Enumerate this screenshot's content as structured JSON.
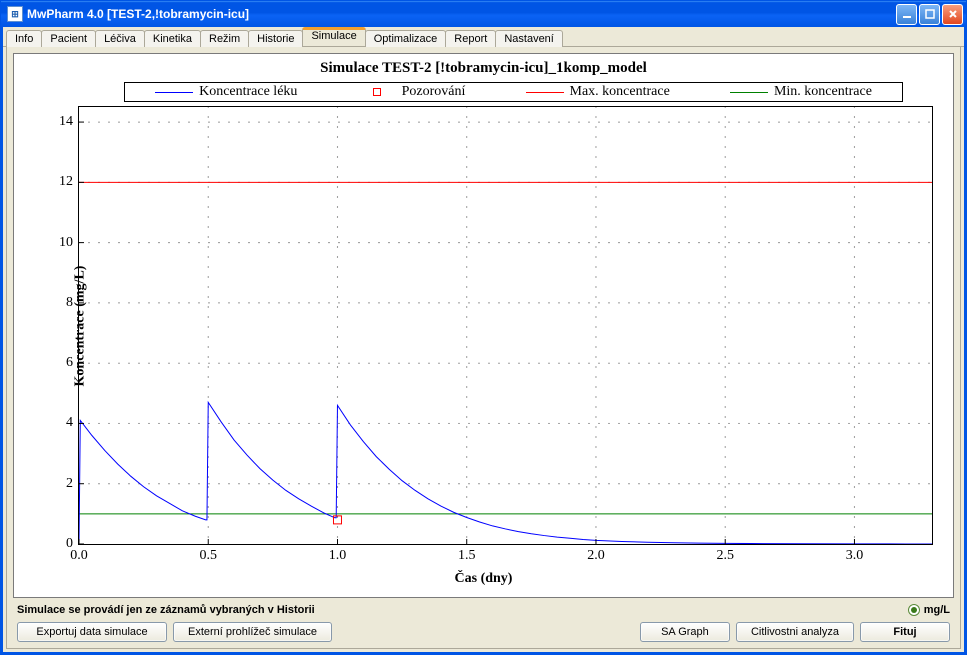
{
  "window": {
    "title": "MwPharm 4.0  [TEST-2,!tobramycin-icu]",
    "app_icon_glyph": "⊞"
  },
  "tabs": [
    {
      "id": "info",
      "label": "Info"
    },
    {
      "id": "pacient",
      "label": "Pacient"
    },
    {
      "id": "leciva",
      "label": "Léčiva"
    },
    {
      "id": "kinetika",
      "label": "Kinetika"
    },
    {
      "id": "rezim",
      "label": "Režim"
    },
    {
      "id": "historie",
      "label": "Historie"
    },
    {
      "id": "simulace",
      "label": "Simulace",
      "active": true
    },
    {
      "id": "optimalizace",
      "label": "Optimalizace"
    },
    {
      "id": "report",
      "label": "Report"
    },
    {
      "id": "nastaveni",
      "label": "Nastavení"
    }
  ],
  "chart": {
    "type": "line",
    "title": "Simulace  TEST-2 [!tobramycin-icu]_1komp_model",
    "title_fontsize": 15,
    "xlabel": "Čas (dny)",
    "ylabel": "Koncentrace (mg/L)",
    "label_fontsize": 14,
    "tick_fontsize": 14,
    "xlim": [
      0,
      3.3
    ],
    "ylim": [
      0,
      14.5
    ],
    "xticks": [
      0.0,
      0.5,
      1.0,
      1.5,
      2.0,
      2.5,
      3.0
    ],
    "yticks": [
      0,
      2,
      4,
      6,
      8,
      10,
      12,
      14
    ],
    "grid_style": "dotted",
    "grid_color": "#555555",
    "background_color": "#ffffff",
    "legend": {
      "items": [
        {
          "label": "Koncentrace léku",
          "type": "line",
          "color": "#0000ff"
        },
        {
          "label": "Pozorování",
          "type": "marker",
          "color": "#ff0000",
          "marker": "square"
        },
        {
          "label": "Max. koncentrace",
          "type": "line",
          "color": "#ff0000"
        },
        {
          "label": "Min. koncentrace",
          "type": "line",
          "color": "#008000"
        }
      ]
    },
    "hlines": [
      {
        "y": 12.0,
        "color": "#ff0000",
        "width": 1
      },
      {
        "y": 1.0,
        "color": "#008000",
        "width": 1
      }
    ],
    "series_concentration": {
      "color": "#0000ff",
      "width": 1,
      "points": [
        [
          0.0,
          0.0
        ],
        [
          0.005,
          4.1
        ],
        [
          0.05,
          3.6
        ],
        [
          0.1,
          3.1
        ],
        [
          0.15,
          2.65
        ],
        [
          0.2,
          2.25
        ],
        [
          0.25,
          1.9
        ],
        [
          0.3,
          1.6
        ],
        [
          0.35,
          1.35
        ],
        [
          0.4,
          1.1
        ],
        [
          0.45,
          0.92
        ],
        [
          0.49,
          0.8
        ],
        [
          0.495,
          0.8
        ],
        [
          0.5,
          4.7
        ],
        [
          0.55,
          4.05
        ],
        [
          0.6,
          3.45
        ],
        [
          0.65,
          2.95
        ],
        [
          0.7,
          2.5
        ],
        [
          0.75,
          2.12
        ],
        [
          0.8,
          1.78
        ],
        [
          0.85,
          1.5
        ],
        [
          0.9,
          1.25
        ],
        [
          0.95,
          1.02
        ],
        [
          0.99,
          0.87
        ],
        [
          0.995,
          0.87
        ],
        [
          1.0,
          4.6
        ],
        [
          1.05,
          3.95
        ],
        [
          1.1,
          3.4
        ],
        [
          1.15,
          2.9
        ],
        [
          1.2,
          2.48
        ],
        [
          1.25,
          2.1
        ],
        [
          1.3,
          1.78
        ],
        [
          1.35,
          1.5
        ],
        [
          1.4,
          1.26
        ],
        [
          1.45,
          1.05
        ],
        [
          1.5,
          0.88
        ],
        [
          1.55,
          0.73
        ],
        [
          1.6,
          0.6
        ],
        [
          1.65,
          0.5
        ],
        [
          1.7,
          0.41
        ],
        [
          1.75,
          0.34
        ],
        [
          1.8,
          0.28
        ],
        [
          1.85,
          0.23
        ],
        [
          1.9,
          0.19
        ],
        [
          1.95,
          0.15
        ],
        [
          2.0,
          0.12
        ],
        [
          2.1,
          0.085
        ],
        [
          2.2,
          0.06
        ],
        [
          2.3,
          0.042
        ],
        [
          2.4,
          0.03
        ],
        [
          2.5,
          0.02
        ],
        [
          2.6,
          0.015
        ],
        [
          2.8,
          0.008
        ],
        [
          3.0,
          0.004
        ],
        [
          3.2,
          0.002
        ],
        [
          3.3,
          0.001
        ]
      ]
    },
    "observations": {
      "color": "#ff0000",
      "marker": "square",
      "size": 8,
      "points": [
        [
          1.0,
          0.8
        ]
      ]
    }
  },
  "bottom": {
    "status_text": "Simulace se provádí jen ze záznamů vybraných v Historii",
    "unit_label": "mg/L",
    "buttons": {
      "export": "Exportuj data simulace",
      "external": "Externí prohlížeč simulace",
      "sa_graph": "SA Graph",
      "sensitivity": "Citlivostni analyza",
      "fit": "Fituj"
    }
  }
}
